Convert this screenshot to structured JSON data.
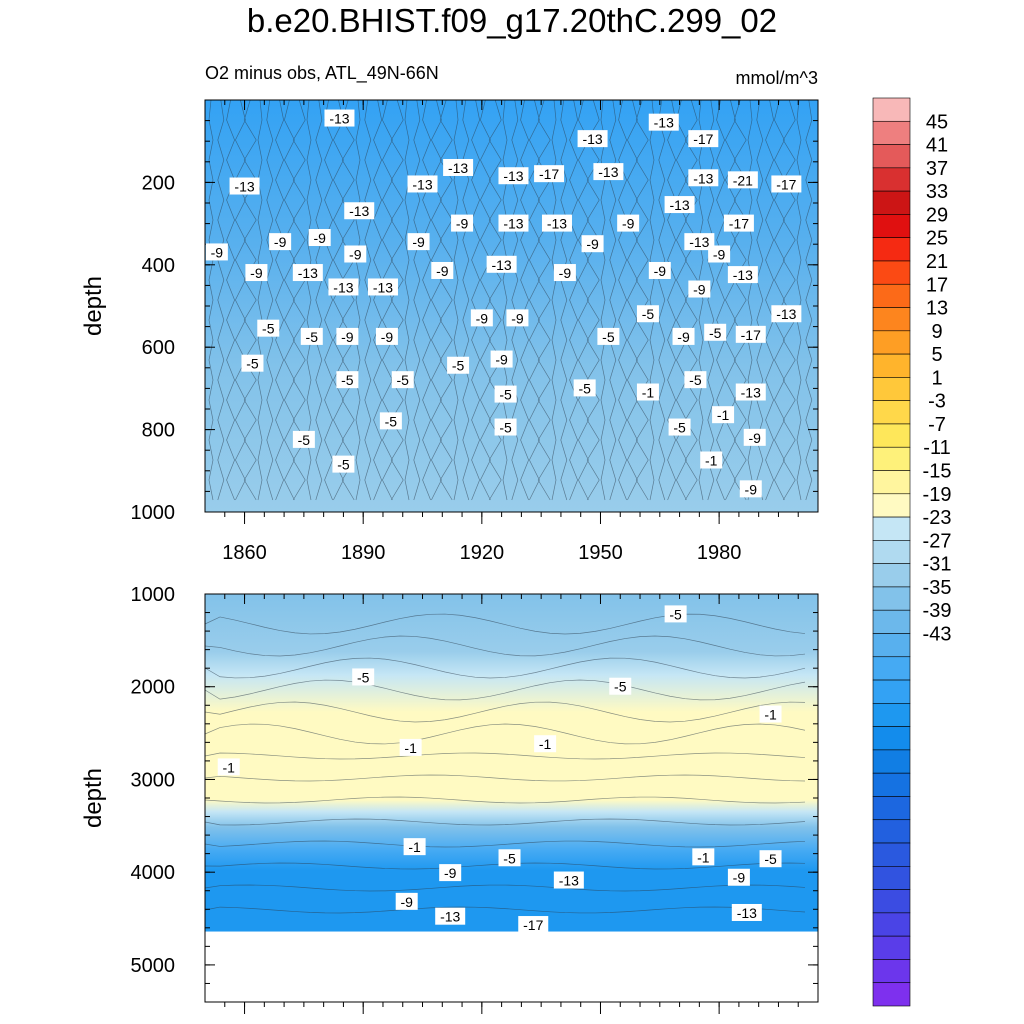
{
  "title": "b.e20.BHIST.f09_g17.20thC.299_02",
  "subtitle_left": "O2 minus obs, ATL_49N-66N",
  "subtitle_right": "mmol/m^3",
  "chart_data": {
    "type": "heatmap",
    "variable": "O2 minus obs",
    "units": "mmol/m^3",
    "x_ticks": [
      "1860",
      "1890",
      "1920",
      "1950",
      "1980"
    ],
    "x_range": [
      1850,
      2005
    ],
    "panels": [
      {
        "ylabel": "depth",
        "y_range": [
          0,
          1000
        ],
        "y_ticks": [
          "200",
          "400",
          "600",
          "800",
          "1000"
        ],
        "contour_labels": [
          {
            "t": "-13",
            "x": 1884,
            "y": 45
          },
          {
            "t": "-13",
            "x": 1948,
            "y": 95
          },
          {
            "t": "-13",
            "x": 1966,
            "y": 55
          },
          {
            "t": "-17",
            "x": 1976,
            "y": 95
          },
          {
            "t": "-13",
            "x": 1860,
            "y": 210
          },
          {
            "t": "-13",
            "x": 1905,
            "y": 205
          },
          {
            "t": "-13",
            "x": 1914,
            "y": 165
          },
          {
            "t": "-13",
            "x": 1928,
            "y": 185
          },
          {
            "t": "-17",
            "x": 1937,
            "y": 180
          },
          {
            "t": "-13",
            "x": 1952,
            "y": 175
          },
          {
            "t": "-13",
            "x": 1976,
            "y": 190
          },
          {
            "t": "-21",
            "x": 1986,
            "y": 195
          },
          {
            "t": "-17",
            "x": 1997,
            "y": 205
          },
          {
            "t": "-13",
            "x": 1889,
            "y": 270
          },
          {
            "t": "-9",
            "x": 1869,
            "y": 345
          },
          {
            "t": "-9",
            "x": 1879,
            "y": 335
          },
          {
            "t": "-9",
            "x": 1904,
            "y": 345
          },
          {
            "t": "-9",
            "x": 1915,
            "y": 300
          },
          {
            "t": "-13",
            "x": 1928,
            "y": 300
          },
          {
            "t": "-13",
            "x": 1939,
            "y": 300
          },
          {
            "t": "-9",
            "x": 1948,
            "y": 350
          },
          {
            "t": "-9",
            "x": 1957,
            "y": 300
          },
          {
            "t": "-13",
            "x": 1970,
            "y": 255
          },
          {
            "t": "-13",
            "x": 1975,
            "y": 345
          },
          {
            "t": "-17",
            "x": 1985,
            "y": 300
          },
          {
            "t": "-9",
            "x": 1853,
            "y": 370
          },
          {
            "t": "-9",
            "x": 1888,
            "y": 375
          },
          {
            "t": "-9",
            "x": 1863,
            "y": 420
          },
          {
            "t": "-13",
            "x": 1876,
            "y": 420
          },
          {
            "t": "-9",
            "x": 1910,
            "y": 415
          },
          {
            "t": "-13",
            "x": 1925,
            "y": 400
          },
          {
            "t": "-9",
            "x": 1941,
            "y": 420
          },
          {
            "t": "-9",
            "x": 1965,
            "y": 415
          },
          {
            "t": "-9",
            "x": 1980,
            "y": 375
          },
          {
            "t": "-13",
            "x": 1986,
            "y": 425
          },
          {
            "t": "-13",
            "x": 1885,
            "y": 455
          },
          {
            "t": "-13",
            "x": 1895,
            "y": 455
          },
          {
            "t": "-9",
            "x": 1975,
            "y": 460
          },
          {
            "t": "-9",
            "x": 1920,
            "y": 530
          },
          {
            "t": "-9",
            "x": 1929,
            "y": 530
          },
          {
            "t": "-5",
            "x": 1962,
            "y": 520
          },
          {
            "t": "-13",
            "x": 1997,
            "y": 520
          },
          {
            "t": "-5",
            "x": 1866,
            "y": 555
          },
          {
            "t": "-5",
            "x": 1877,
            "y": 575
          },
          {
            "t": "-9",
            "x": 1886,
            "y": 575
          },
          {
            "t": "-9",
            "x": 1896,
            "y": 575
          },
          {
            "t": "-5",
            "x": 1952,
            "y": 575
          },
          {
            "t": "-9",
            "x": 1971,
            "y": 575
          },
          {
            "t": "-5",
            "x": 1979,
            "y": 565
          },
          {
            "t": "-17",
            "x": 1988,
            "y": 570
          },
          {
            "t": "-5",
            "x": 1862,
            "y": 640
          },
          {
            "t": "-5",
            "x": 1914,
            "y": 645
          },
          {
            "t": "-9",
            "x": 1925,
            "y": 630
          },
          {
            "t": "-5",
            "x": 1886,
            "y": 680
          },
          {
            "t": "-5",
            "x": 1900,
            "y": 680
          },
          {
            "t": "-5",
            "x": 1946,
            "y": 700
          },
          {
            "t": "-1",
            "x": 1962,
            "y": 710
          },
          {
            "t": "-5",
            "x": 1974,
            "y": 680
          },
          {
            "t": "-13",
            "x": 1988,
            "y": 710
          },
          {
            "t": "-5",
            "x": 1926,
            "y": 715
          },
          {
            "t": "-5",
            "x": 1897,
            "y": 780
          },
          {
            "t": "-5",
            "x": 1926,
            "y": 795
          },
          {
            "t": "-1",
            "x": 1981,
            "y": 765
          },
          {
            "t": "-5",
            "x": 1970,
            "y": 795
          },
          {
            "t": "-5",
            "x": 1875,
            "y": 825
          },
          {
            "t": "-9",
            "x": 1989,
            "y": 820
          },
          {
            "t": "-5",
            "x": 1885,
            "y": 885
          },
          {
            "t": "-1",
            "x": 1978,
            "y": 875
          },
          {
            "t": "-9",
            "x": 1988,
            "y": 945
          }
        ]
      },
      {
        "ylabel": "depth",
        "y_range": [
          1000,
          5400
        ],
        "y_ticks": [
          "1000",
          "2000",
          "3000",
          "4000",
          "5000"
        ],
        "contour_labels": [
          {
            "t": "-5",
            "x": 1969,
            "y": 1220
          },
          {
            "t": "-5",
            "x": 1890,
            "y": 1900
          },
          {
            "t": "-5",
            "x": 1955,
            "y": 2000
          },
          {
            "t": "-1",
            "x": 1993,
            "y": 2300
          },
          {
            "t": "-1",
            "x": 1856,
            "y": 2870
          },
          {
            "t": "-1",
            "x": 1902,
            "y": 2660
          },
          {
            "t": "-1",
            "x": 1936,
            "y": 2620
          },
          {
            "t": "-1",
            "x": 1903,
            "y": 3730
          },
          {
            "t": "-5",
            "x": 1927,
            "y": 3850
          },
          {
            "t": "-1",
            "x": 1976,
            "y": 3840
          },
          {
            "t": "-5",
            "x": 1993,
            "y": 3860
          },
          {
            "t": "-9",
            "x": 1912,
            "y": 4010
          },
          {
            "t": "-13",
            "x": 1942,
            "y": 4090
          },
          {
            "t": "-9",
            "x": 1985,
            "y": 4060
          },
          {
            "t": "-9",
            "x": 1901,
            "y": 4320
          },
          {
            "t": "-13",
            "x": 1912,
            "y": 4480
          },
          {
            "t": "-17",
            "x": 1933,
            "y": 4570
          },
          {
            "t": "-13",
            "x": 1987,
            "y": 4440
          }
        ]
      }
    ],
    "colorbar": {
      "labels": [
        "45",
        "41",
        "37",
        "33",
        "29",
        "25",
        "21",
        "17",
        "13",
        "9",
        "5",
        "1",
        "-3",
        "-7",
        "-11",
        "-15",
        "-19",
        "-23",
        "-27",
        "-31",
        "-35",
        "-39",
        "-43"
      ],
      "colors": [
        "#f8b8b8",
        "#ee7f7f",
        "#e45a5a",
        "#d93030",
        "#cc1515",
        "#e01010",
        "#f52a12",
        "#fb4a14",
        "#fc6a18",
        "#fd851e",
        "#fe9e24",
        "#ffb42c",
        "#ffc83a",
        "#ffd84a",
        "#fee75a",
        "#fef17a",
        "#fff59e",
        "#fffac2",
        "#c5e6f5",
        "#b0daf0",
        "#99cdeb",
        "#82c2ea",
        "#6cb8eb",
        "#58b0ee",
        "#45aaf3",
        "#33a2f4",
        "#1e98f0",
        "#138cec",
        "#117ee4",
        "#1572e2",
        "#1c67e0",
        "#2260df",
        "#2a59df",
        "#3153e0",
        "#3b4ce2",
        "#4a44e6",
        "#5a3de9",
        "#6c36ec",
        "#7e30ee"
      ]
    }
  }
}
